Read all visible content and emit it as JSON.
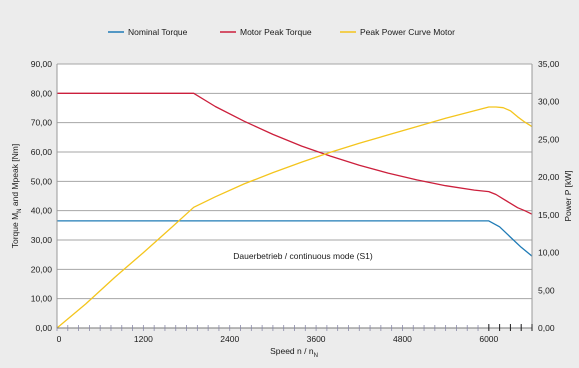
{
  "colors": {
    "background": "#ececec",
    "plot_background": "#ffffff",
    "grid": "#a6a6a6",
    "nominal_torque": "#1f7bb6",
    "motor_peak_torque": "#cc1f3c",
    "peak_power_curve": "#f4c51d"
  },
  "chart_data": {
    "type": "line",
    "xlabel": "Speed n / n",
    "xlabel_subscript": "N",
    "ylabel_left": "Torque M",
    "ylabel_left_subscript": "N",
    "ylabel_left_rest": " and Mpeak [Nm]",
    "ylabel_right": "Power  P [kW]",
    "annotation": "Dauerbetrieb / continuous mode (S1)",
    "legend_position": "top",
    "grid": true,
    "xlim": [
      0,
      6600
    ],
    "ylim_left": [
      0,
      90
    ],
    "ylim_right": [
      0,
      35
    ],
    "x_ticks": [
      0,
      1200,
      2400,
      3600,
      4800,
      6000
    ],
    "x_tick_labels": [
      "0",
      "1200",
      "2400",
      "3600",
      "4800",
      "6000"
    ],
    "y_left_ticks": [
      0,
      10,
      20,
      30,
      40,
      50,
      60,
      70,
      80,
      90
    ],
    "y_left_tick_labels": [
      "0,00",
      "10,00",
      "20,00",
      "30,00",
      "40,00",
      "50,00",
      "60,00",
      "70,00",
      "80,00",
      "90,00"
    ],
    "y_right_ticks": [
      0,
      5,
      10,
      15,
      20,
      25,
      30,
      35
    ],
    "y_right_tick_labels": [
      "0,00",
      "5,00",
      "10,00",
      "15,00",
      "20,00",
      "25,00",
      "30,00",
      "35,00"
    ],
    "series": [
      {
        "name": "Nominal Torque",
        "axis": "left",
        "color_key": "nominal_torque",
        "x": [
          0,
          6000,
          6150,
          6300,
          6450,
          6600
        ],
        "y": [
          36.5,
          36.5,
          34.5,
          31,
          27.5,
          24.5
        ]
      },
      {
        "name": "Motor Peak Torque",
        "axis": "left",
        "color_key": "motor_peak_torque",
        "x": [
          0,
          1900,
          2200,
          2600,
          3000,
          3400,
          3800,
          4200,
          4600,
          5000,
          5400,
          5800,
          6000,
          6100,
          6200,
          6300,
          6400,
          6500,
          6600
        ],
        "y": [
          80,
          80,
          75.5,
          70.5,
          66,
          62,
          58.6,
          55.5,
          52.8,
          50.5,
          48.5,
          47,
          46.5,
          45.5,
          44,
          42.5,
          41,
          40,
          38.8
        ]
      },
      {
        "name": "Peak Power Curve Motor",
        "axis": "right",
        "color_key": "peak_power_curve",
        "x": [
          0,
          400,
          800,
          1200,
          1600,
          1900,
          2200,
          2600,
          3000,
          3400,
          3800,
          4200,
          4600,
          5000,
          5400,
          5800,
          6000,
          6100,
          6200,
          6300,
          6400,
          6500,
          6600
        ],
        "y": [
          0,
          3.2,
          6.7,
          10,
          13.4,
          16,
          17.4,
          19.1,
          20.6,
          22,
          23.3,
          24.5,
          25.6,
          26.7,
          27.8,
          28.8,
          29.3,
          29.3,
          29.2,
          28.8,
          28,
          27.3,
          26.7
        ]
      }
    ]
  }
}
